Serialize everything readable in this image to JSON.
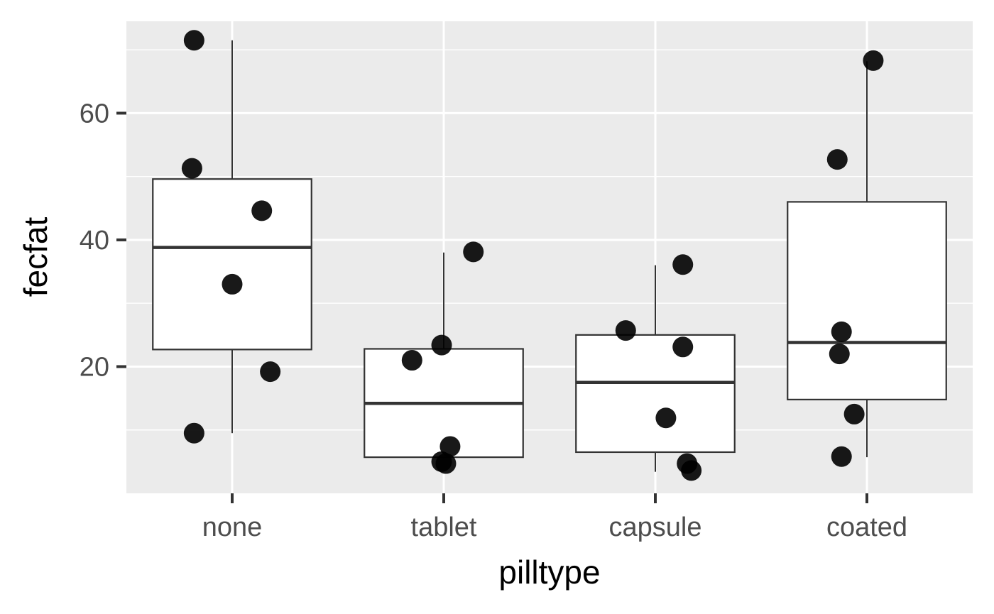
{
  "chart_data": {
    "type": "box",
    "title": "",
    "xlabel": "pilltype",
    "ylabel": "fecfat",
    "categories": [
      "none",
      "tablet",
      "capsule",
      "coated"
    ],
    "ylim": [
      0,
      74.5
    ],
    "yticks": [
      20,
      40,
      60
    ],
    "grid": true,
    "legend": "none",
    "colors": {
      "panel": "#ebebeb",
      "grid": "#ffffff",
      "box_fill": "#ffffff",
      "box_line": "#333333",
      "point": "#000000",
      "tick": "#333333"
    },
    "boxes": [
      {
        "category": "none",
        "whisker_low": 9.5,
        "q1": 22.7,
        "median": 38.8,
        "q3": 49.6,
        "whisker_high": 71.5
      },
      {
        "category": "tablet",
        "whisker_low": 5.5,
        "q1": 5.7,
        "median": 14.2,
        "q3": 22.8,
        "whisker_high": 38.0
      },
      {
        "category": "capsule",
        "whisker_low": 3.4,
        "q1": 6.5,
        "median": 17.5,
        "q3": 25.0,
        "whisker_high": 36.0
      },
      {
        "category": "coated",
        "whisker_low": 5.7,
        "q1": 14.8,
        "median": 23.8,
        "q3": 46.0,
        "whisker_high": 68.2
      }
    ],
    "points": [
      {
        "category": "none",
        "jitter": -0.18,
        "y": 71.5
      },
      {
        "category": "none",
        "jitter": -0.19,
        "y": 51.3
      },
      {
        "category": "none",
        "jitter": 0.14,
        "y": 44.6
      },
      {
        "category": "none",
        "jitter": 0.0,
        "y": 33.0
      },
      {
        "category": "none",
        "jitter": 0.18,
        "y": 19.2
      },
      {
        "category": "none",
        "jitter": -0.18,
        "y": 9.5
      },
      {
        "category": "tablet",
        "jitter": 0.14,
        "y": 38.1
      },
      {
        "category": "tablet",
        "jitter": -0.01,
        "y": 23.4
      },
      {
        "category": "tablet",
        "jitter": -0.15,
        "y": 21.0
      },
      {
        "category": "tablet",
        "jitter": 0.03,
        "y": 7.4
      },
      {
        "category": "tablet",
        "jitter": -0.01,
        "y": 5.0
      },
      {
        "category": "tablet",
        "jitter": 0.01,
        "y": 4.7
      },
      {
        "category": "capsule",
        "jitter": 0.13,
        "y": 36.1
      },
      {
        "category": "capsule",
        "jitter": -0.14,
        "y": 25.7
      },
      {
        "category": "capsule",
        "jitter": 0.13,
        "y": 23.1
      },
      {
        "category": "capsule",
        "jitter": 0.05,
        "y": 11.9
      },
      {
        "category": "capsule",
        "jitter": 0.15,
        "y": 4.7
      },
      {
        "category": "capsule",
        "jitter": 0.17,
        "y": 3.6
      },
      {
        "category": "coated",
        "jitter": 0.03,
        "y": 68.3
      },
      {
        "category": "coated",
        "jitter": -0.14,
        "y": 52.7
      },
      {
        "category": "coated",
        "jitter": -0.12,
        "y": 25.5
      },
      {
        "category": "coated",
        "jitter": -0.13,
        "y": 22.0
      },
      {
        "category": "coated",
        "jitter": -0.06,
        "y": 12.5
      },
      {
        "category": "coated",
        "jitter": -0.12,
        "y": 5.8
      }
    ]
  }
}
